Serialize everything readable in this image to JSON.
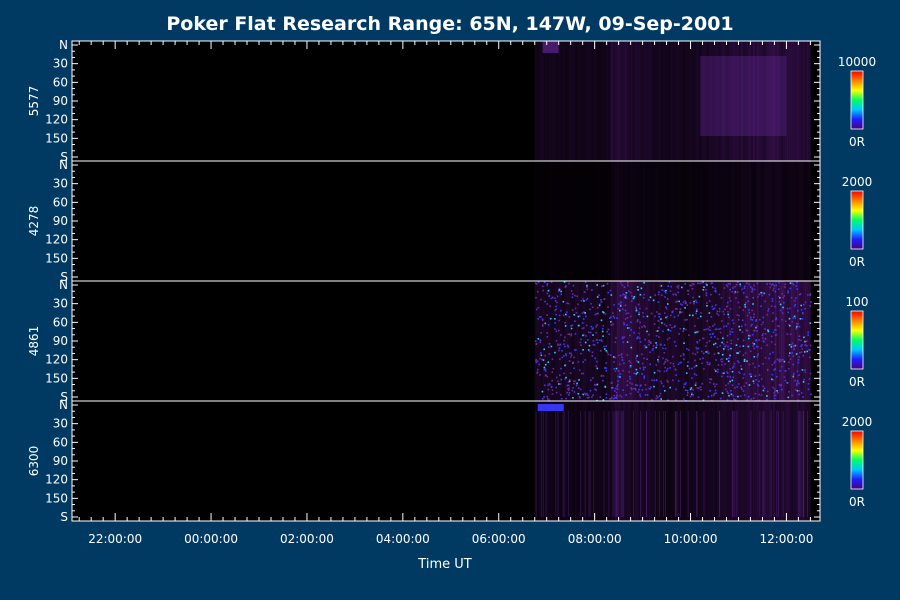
{
  "colors": {
    "background": "#003a63",
    "frame": "#ffffff",
    "panel_fill": "#000000",
    "aurora_faint": "#2a0a36",
    "aurora_mid": "#4a1469",
    "aurora_bright": "#6a2aa0",
    "speckle_blue": "#3a3aff",
    "speckle_cyan": "#38c8ff"
  },
  "chart_data": {
    "type": "heatmap",
    "title": "Poker Flat Research Range: 65N, 147W, 09-Sep-2001",
    "xlabel": "Time UT",
    "x_tick_labels": [
      "22:00:00",
      "00:00:00",
      "02:00:00",
      "04:00:00",
      "06:00:00",
      "08:00:00",
      "10:00:00",
      "12:00:00"
    ],
    "x_tick_hours": [
      22,
      24,
      26,
      28,
      30,
      32,
      34,
      36
    ],
    "xlim_hours": [
      21.1,
      36.7
    ],
    "data_start_hour": 30.75,
    "data_end_hour": 36.5,
    "y_tick_labels": [
      "N",
      "30",
      "60",
      "90",
      "120",
      "150",
      "S"
    ],
    "y_tick_values": [
      0,
      30,
      60,
      90,
      120,
      150,
      180
    ],
    "ylim": [
      0,
      180
    ],
    "colormap": [
      "#4b0082",
      "#1e1eff",
      "#00c8ff",
      "#00ff64",
      "#ffff00",
      "#ff8000",
      "#ff0000"
    ],
    "panels": [
      {
        "name": "5577",
        "scale_max_label": "10000",
        "scale_min_label": "0R",
        "max_R": 10000,
        "intensity": 0.55,
        "noise": "smooth"
      },
      {
        "name": "4278",
        "scale_max_label": "2000",
        "scale_min_label": "0R",
        "max_R": 2000,
        "intensity": 0.35,
        "noise": "grainy"
      },
      {
        "name": "4861",
        "scale_max_label": "100",
        "scale_min_label": "0R",
        "max_R": 100,
        "intensity": 0.7,
        "noise": "speckle"
      },
      {
        "name": "6300",
        "scale_max_label": "2000",
        "scale_min_label": "0R",
        "max_R": 2000,
        "intensity": 0.45,
        "noise": "streaky"
      }
    ]
  }
}
